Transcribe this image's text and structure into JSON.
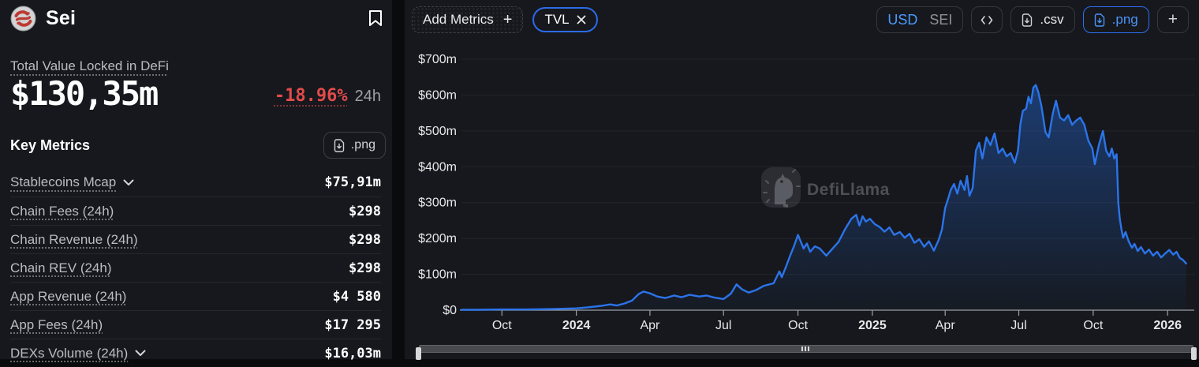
{
  "sidebar": {
    "chain_name": "Sei",
    "tvl_label": "Total Value Locked in DeFi",
    "tvl_value": "$130,35m",
    "tvl_change": "-18.96%",
    "tvl_change_period": "24h",
    "key_metrics_title": "Key Metrics",
    "png_button_label": ".png",
    "metrics": [
      {
        "label": "Stablecoins Mcap",
        "value": "$75,91m",
        "expandable": true
      },
      {
        "label": "Chain Fees (24h)",
        "value": "$298",
        "expandable": false
      },
      {
        "label": "Chain Revenue (24h)",
        "value": "$298",
        "expandable": false
      },
      {
        "label": "Chain REV (24h)",
        "value": "$298",
        "expandable": false
      },
      {
        "label": "App Revenue (24h)",
        "value": "$4 580",
        "expandable": false
      },
      {
        "label": "App Fees (24h)",
        "value": "$17 295",
        "expandable": false
      },
      {
        "label": "DEXs Volume (24h)",
        "value": "$16,03m",
        "expandable": true
      }
    ]
  },
  "toolbar": {
    "add_metrics_label": "Add Metrics",
    "add_metrics_plus": "+",
    "tvl_chip_label": "TVL",
    "currency_usd": "USD",
    "currency_sei": "SEI",
    "csv_label": ".csv",
    "png_label": ".png",
    "add_chart_label": "+"
  },
  "watermark": "DefiLlama",
  "colors": {
    "accent_blue": "#2b74ea",
    "negative_red": "#e14b4b",
    "panel_bg": "#16181d",
    "page_bg": "#0a0b0d"
  },
  "chart_data": {
    "type": "area",
    "title": "TVL",
    "currency": "USD",
    "unit": "$m",
    "ylim": [
      0,
      700
    ],
    "x_domain": [
      "2023-08-12",
      "2026-02-01"
    ],
    "grid": true,
    "legend": false,
    "y_ticks": [
      {
        "value": 0,
        "label": "$0"
      },
      {
        "value": 100,
        "label": "$100m"
      },
      {
        "value": 200,
        "label": "$200m"
      },
      {
        "value": 300,
        "label": "$300m"
      },
      {
        "value": 400,
        "label": "$400m"
      },
      {
        "value": 500,
        "label": "$500m"
      },
      {
        "value": 600,
        "label": "$600m"
      },
      {
        "value": 700,
        "label": "$700m"
      }
    ],
    "x_ticks": [
      {
        "date": "2023-10-01",
        "label": "Oct"
      },
      {
        "date": "2024-01-01",
        "label": "2024",
        "bold": true
      },
      {
        "date": "2024-04-01",
        "label": "Apr"
      },
      {
        "date": "2024-07-01",
        "label": "Jul"
      },
      {
        "date": "2024-10-01",
        "label": "Oct"
      },
      {
        "date": "2025-01-01",
        "label": "2025",
        "bold": true
      },
      {
        "date": "2025-04-01",
        "label": "Apr"
      },
      {
        "date": "2025-07-01",
        "label": "Jul"
      },
      {
        "date": "2025-10-01",
        "label": "Oct"
      },
      {
        "date": "2026-01-01",
        "label": "2026",
        "bold": true
      }
    ],
    "series": [
      {
        "name": "TVL",
        "points": [
          [
            "2023-08-12",
            1
          ],
          [
            "2023-09-01",
            1
          ],
          [
            "2023-10-01",
            2
          ],
          [
            "2023-11-01",
            2
          ],
          [
            "2023-12-01",
            3
          ],
          [
            "2024-01-01",
            5
          ],
          [
            "2024-01-15",
            8
          ],
          [
            "2024-02-01",
            12
          ],
          [
            "2024-02-12",
            16
          ],
          [
            "2024-02-20",
            13
          ],
          [
            "2024-03-01",
            19
          ],
          [
            "2024-03-10",
            27
          ],
          [
            "2024-03-18",
            45
          ],
          [
            "2024-03-24",
            52
          ],
          [
            "2024-04-01",
            47
          ],
          [
            "2024-04-10",
            38
          ],
          [
            "2024-04-20",
            34
          ],
          [
            "2024-05-01",
            41
          ],
          [
            "2024-05-10",
            36
          ],
          [
            "2024-05-20",
            43
          ],
          [
            "2024-06-01",
            38
          ],
          [
            "2024-06-10",
            41
          ],
          [
            "2024-06-20",
            35
          ],
          [
            "2024-07-01",
            31
          ],
          [
            "2024-07-10",
            46
          ],
          [
            "2024-07-17",
            72
          ],
          [
            "2024-07-24",
            58
          ],
          [
            "2024-08-01",
            49
          ],
          [
            "2024-08-10",
            56
          ],
          [
            "2024-08-20",
            68
          ],
          [
            "2024-09-01",
            75
          ],
          [
            "2024-09-08",
            108
          ],
          [
            "2024-09-11",
            92
          ],
          [
            "2024-09-16",
            120
          ],
          [
            "2024-09-21",
            150
          ],
          [
            "2024-09-26",
            178
          ],
          [
            "2024-10-01",
            210
          ],
          [
            "2024-10-08",
            172
          ],
          [
            "2024-10-12",
            186
          ],
          [
            "2024-10-16",
            163
          ],
          [
            "2024-10-22",
            178
          ],
          [
            "2024-10-28",
            172
          ],
          [
            "2024-11-05",
            152
          ],
          [
            "2024-11-12",
            170
          ],
          [
            "2024-11-20",
            190
          ],
          [
            "2024-11-28",
            225
          ],
          [
            "2024-12-06",
            255
          ],
          [
            "2024-12-12",
            266
          ],
          [
            "2024-12-16",
            236
          ],
          [
            "2024-12-20",
            262
          ],
          [
            "2024-12-24",
            247
          ],
          [
            "2024-12-29",
            255
          ],
          [
            "2025-01-04",
            240
          ],
          [
            "2025-01-10",
            232
          ],
          [
            "2025-01-16",
            219
          ],
          [
            "2025-01-22",
            231
          ],
          [
            "2025-01-28",
            210
          ],
          [
            "2025-02-04",
            218
          ],
          [
            "2025-02-10",
            202
          ],
          [
            "2025-02-16",
            213
          ],
          [
            "2025-02-22",
            188
          ],
          [
            "2025-02-28",
            198
          ],
          [
            "2025-03-06",
            177
          ],
          [
            "2025-03-12",
            192
          ],
          [
            "2025-03-18",
            166
          ],
          [
            "2025-03-24",
            196
          ],
          [
            "2025-03-28",
            225
          ],
          [
            "2025-04-01",
            285
          ],
          [
            "2025-04-04",
            306
          ],
          [
            "2025-04-08",
            336
          ],
          [
            "2025-04-12",
            352
          ],
          [
            "2025-04-16",
            325
          ],
          [
            "2025-04-20",
            361
          ],
          [
            "2025-04-25",
            335
          ],
          [
            "2025-04-28",
            374
          ],
          [
            "2025-05-01",
            319
          ],
          [
            "2025-05-05",
            341
          ],
          [
            "2025-05-09",
            445
          ],
          [
            "2025-05-13",
            467
          ],
          [
            "2025-05-17",
            423
          ],
          [
            "2025-05-22",
            482
          ],
          [
            "2025-05-27",
            460
          ],
          [
            "2025-06-01",
            493
          ],
          [
            "2025-06-06",
            438
          ],
          [
            "2025-06-11",
            451
          ],
          [
            "2025-06-16",
            429
          ],
          [
            "2025-06-21",
            438
          ],
          [
            "2025-06-26",
            411
          ],
          [
            "2025-06-30",
            445
          ],
          [
            "2025-07-03",
            520
          ],
          [
            "2025-07-06",
            556
          ],
          [
            "2025-07-10",
            562
          ],
          [
            "2025-07-13",
            595
          ],
          [
            "2025-07-16",
            577
          ],
          [
            "2025-07-19",
            621
          ],
          [
            "2025-07-22",
            628
          ],
          [
            "2025-07-25",
            610
          ],
          [
            "2025-07-29",
            570
          ],
          [
            "2025-08-03",
            496
          ],
          [
            "2025-08-07",
            482
          ],
          [
            "2025-08-12",
            548
          ],
          [
            "2025-08-16",
            584
          ],
          [
            "2025-08-21",
            537
          ],
          [
            "2025-08-26",
            529
          ],
          [
            "2025-08-31",
            544
          ],
          [
            "2025-09-05",
            517
          ],
          [
            "2025-09-10",
            529
          ],
          [
            "2025-09-15",
            537
          ],
          [
            "2025-09-20",
            517
          ],
          [
            "2025-09-25",
            473
          ],
          [
            "2025-09-30",
            451
          ],
          [
            "2025-10-03",
            407
          ],
          [
            "2025-10-08",
            460
          ],
          [
            "2025-10-13",
            500
          ],
          [
            "2025-10-17",
            445
          ],
          [
            "2025-10-21",
            429
          ],
          [
            "2025-10-24",
            451
          ],
          [
            "2025-10-27",
            423
          ],
          [
            "2025-10-30",
            435
          ],
          [
            "2025-11-01",
            300
          ],
          [
            "2025-11-03",
            253
          ],
          [
            "2025-11-05",
            224
          ],
          [
            "2025-11-07",
            202
          ],
          [
            "2025-11-10",
            218
          ],
          [
            "2025-11-14",
            191
          ],
          [
            "2025-11-18",
            174
          ],
          [
            "2025-11-21",
            185
          ],
          [
            "2025-11-25",
            165
          ],
          [
            "2025-11-29",
            176
          ],
          [
            "2025-12-04",
            158
          ],
          [
            "2025-12-09",
            169
          ],
          [
            "2025-12-14",
            152
          ],
          [
            "2025-12-19",
            163
          ],
          [
            "2025-12-24",
            147
          ],
          [
            "2025-12-29",
            158
          ],
          [
            "2026-01-03",
            168
          ],
          [
            "2026-01-08",
            155
          ],
          [
            "2026-01-12",
            163
          ],
          [
            "2026-01-16",
            146
          ],
          [
            "2026-01-20",
            140
          ],
          [
            "2026-01-24",
            130
          ]
        ]
      }
    ]
  }
}
